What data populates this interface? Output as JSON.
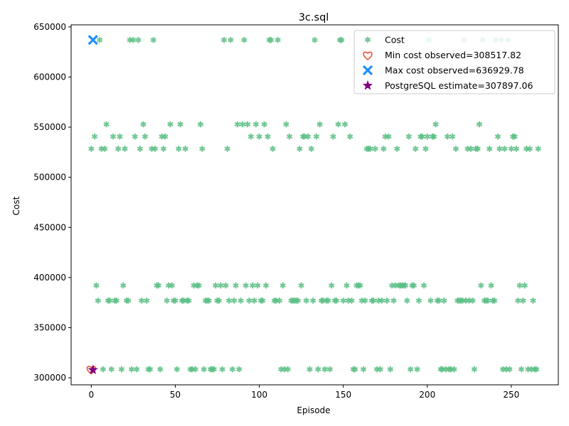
{
  "chart_data": {
    "type": "scatter",
    "title": "3c.sql",
    "xlabel": "Episode",
    "ylabel": "Cost",
    "xlim": [
      -12,
      278
    ],
    "ylim": [
      293000,
      652000
    ],
    "xticks": [
      0,
      50,
      100,
      150,
      200,
      250
    ],
    "yticks": [
      300000,
      350000,
      400000,
      450000,
      500000,
      550000,
      600000,
      650000
    ],
    "grid": false,
    "legend_position": "top-right",
    "colors": {
      "cost": "#5cbf85",
      "min": "#f0634b",
      "max": "#1e90ff",
      "estimate": "#800080"
    },
    "series": [
      {
        "name": "Cost",
        "marker": "asterisk",
        "points": [
          [
            0,
            528400
          ],
          [
            2,
            540600
          ],
          [
            3,
            392100
          ],
          [
            4,
            377000
          ],
          [
            5,
            636900
          ],
          [
            6,
            528400
          ],
          [
            7,
            308500
          ],
          [
            8,
            528400
          ],
          [
            9,
            552800
          ],
          [
            10,
            377000
          ],
          [
            11,
            377000
          ],
          [
            12,
            308500
          ],
          [
            13,
            540600
          ],
          [
            14,
            377000
          ],
          [
            15,
            377000
          ],
          [
            16,
            528400
          ],
          [
            17,
            540600
          ],
          [
            18,
            308500
          ],
          [
            19,
            392100
          ],
          [
            20,
            528400
          ],
          [
            21,
            377000
          ],
          [
            22,
            377000
          ],
          [
            23,
            636900
          ],
          [
            24,
            308500
          ],
          [
            25,
            636900
          ],
          [
            26,
            540600
          ],
          [
            27,
            308500
          ],
          [
            28,
            636900
          ],
          [
            29,
            528400
          ],
          [
            30,
            377000
          ],
          [
            31,
            552800
          ],
          [
            32,
            540600
          ],
          [
            33,
            377000
          ],
          [
            34,
            308500
          ],
          [
            35,
            308500
          ],
          [
            36,
            528400
          ],
          [
            37,
            636900
          ],
          [
            38,
            528400
          ],
          [
            39,
            392100
          ],
          [
            40,
            392100
          ],
          [
            41,
            308500
          ],
          [
            42,
            540600
          ],
          [
            43,
            528400
          ],
          [
            44,
            540600
          ],
          [
            45,
            377000
          ],
          [
            46,
            392100
          ],
          [
            47,
            552800
          ],
          [
            48,
            392100
          ],
          [
            49,
            377000
          ],
          [
            50,
            377000
          ],
          [
            51,
            308500
          ],
          [
            52,
            528400
          ],
          [
            53,
            552800
          ],
          [
            54,
            377000
          ],
          [
            55,
            377000
          ],
          [
            56,
            528400
          ],
          [
            57,
            377000
          ],
          [
            58,
            377000
          ],
          [
            59,
            308500
          ],
          [
            60,
            308500
          ],
          [
            61,
            392100
          ],
          [
            62,
            308500
          ],
          [
            63,
            392100
          ],
          [
            64,
            392100
          ],
          [
            65,
            552800
          ],
          [
            66,
            528400
          ],
          [
            67,
            308500
          ],
          [
            68,
            377000
          ],
          [
            69,
            377000
          ],
          [
            70,
            377000
          ],
          [
            71,
            308500
          ],
          [
            72,
            308500
          ],
          [
            73,
            308500
          ],
          [
            74,
            392100
          ],
          [
            75,
            377000
          ],
          [
            76,
            377000
          ],
          [
            77,
            392100
          ],
          [
            78,
            308500
          ],
          [
            79,
            636900
          ],
          [
            80,
            392100
          ],
          [
            81,
            528400
          ],
          [
            82,
            377000
          ],
          [
            83,
            636900
          ],
          [
            84,
            308500
          ],
          [
            85,
            377000
          ],
          [
            86,
            392100
          ],
          [
            87,
            552800
          ],
          [
            88,
            308500
          ],
          [
            89,
            377000
          ],
          [
            90,
            552800
          ],
          [
            91,
            636900
          ],
          [
            92,
            392100
          ],
          [
            93,
            552800
          ],
          [
            94,
            377000
          ],
          [
            95,
            540600
          ],
          [
            96,
            392100
          ],
          [
            97,
            377000
          ],
          [
            98,
            552800
          ],
          [
            99,
            392100
          ],
          [
            100,
            540600
          ],
          [
            101,
            377000
          ],
          [
            102,
            377000
          ],
          [
            103,
            552800
          ],
          [
            104,
            392100
          ],
          [
            105,
            540600
          ],
          [
            106,
            636900
          ],
          [
            107,
            636900
          ],
          [
            108,
            528400
          ],
          [
            109,
            377000
          ],
          [
            110,
            377000
          ],
          [
            111,
            636900
          ],
          [
            112,
            377000
          ],
          [
            113,
            308500
          ],
          [
            114,
            392100
          ],
          [
            115,
            308500
          ],
          [
            116,
            552800
          ],
          [
            117,
            308500
          ],
          [
            118,
            540600
          ],
          [
            119,
            377000
          ],
          [
            120,
            377000
          ],
          [
            121,
            377000
          ],
          [
            122,
            377000
          ],
          [
            123,
            377000
          ],
          [
            124,
            528400
          ],
          [
            125,
            392100
          ],
          [
            126,
            540600
          ],
          [
            127,
            540600
          ],
          [
            128,
            377000
          ],
          [
            129,
            540600
          ],
          [
            130,
            308500
          ],
          [
            131,
            528400
          ],
          [
            132,
            377000
          ],
          [
            133,
            636900
          ],
          [
            134,
            540600
          ],
          [
            135,
            308500
          ],
          [
            136,
            552800
          ],
          [
            137,
            377000
          ],
          [
            138,
            377000
          ],
          [
            139,
            308500
          ],
          [
            140,
            377000
          ],
          [
            141,
            377000
          ],
          [
            142,
            308500
          ],
          [
            143,
            392100
          ],
          [
            144,
            540600
          ],
          [
            145,
            377000
          ],
          [
            146,
            377000
          ],
          [
            147,
            552800
          ],
          [
            148,
            636900
          ],
          [
            149,
            636900
          ],
          [
            150,
            377000
          ],
          [
            151,
            552800
          ],
          [
            152,
            392100
          ],
          [
            153,
            377000
          ],
          [
            154,
            540600
          ],
          [
            155,
            377000
          ],
          [
            156,
            308500
          ],
          [
            157,
            308500
          ],
          [
            158,
            392100
          ],
          [
            159,
            392100
          ],
          [
            160,
            392100
          ],
          [
            161,
            377000
          ],
          [
            162,
            308500
          ],
          [
            163,
            377000
          ],
          [
            164,
            528400
          ],
          [
            165,
            528400
          ],
          [
            166,
            528400
          ],
          [
            167,
            377000
          ],
          [
            168,
            377000
          ],
          [
            169,
            528400
          ],
          [
            170,
            308500
          ],
          [
            171,
            377000
          ],
          [
            172,
            308500
          ],
          [
            173,
            377000
          ],
          [
            174,
            528400
          ],
          [
            175,
            540600
          ],
          [
            176,
            377000
          ],
          [
            177,
            540600
          ],
          [
            178,
            308500
          ],
          [
            179,
            392100
          ],
          [
            180,
            377000
          ],
          [
            181,
            392100
          ],
          [
            182,
            528400
          ],
          [
            183,
            392100
          ],
          [
            184,
            392100
          ],
          [
            185,
            392100
          ],
          [
            186,
            392100
          ],
          [
            187,
            392100
          ],
          [
            188,
            377000
          ],
          [
            189,
            540600
          ],
          [
            190,
            308500
          ],
          [
            191,
            392100
          ],
          [
            192,
            392100
          ],
          [
            193,
            528400
          ],
          [
            194,
            308500
          ],
          [
            195,
            377000
          ],
          [
            196,
            540600
          ],
          [
            197,
            540600
          ],
          [
            198,
            392100
          ],
          [
            199,
            528400
          ],
          [
            200,
            540600
          ],
          [
            201,
            636900
          ],
          [
            202,
            377000
          ],
          [
            203,
            540600
          ],
          [
            204,
            540600
          ],
          [
            205,
            552800
          ],
          [
            206,
            377000
          ],
          [
            207,
            377000
          ],
          [
            208,
            308500
          ],
          [
            209,
            308500
          ],
          [
            210,
            377000
          ],
          [
            211,
            308500
          ],
          [
            212,
            540600
          ],
          [
            213,
            308500
          ],
          [
            214,
            308500
          ],
          [
            215,
            540600
          ],
          [
            216,
            308500
          ],
          [
            217,
            528400
          ],
          [
            218,
            377000
          ],
          [
            219,
            377000
          ],
          [
            220,
            377000
          ],
          [
            221,
            377000
          ],
          [
            222,
            636900
          ],
          [
            223,
            377000
          ],
          [
            224,
            528400
          ],
          [
            225,
            377000
          ],
          [
            226,
            528400
          ],
          [
            227,
            377000
          ],
          [
            228,
            308500
          ],
          [
            229,
            528400
          ],
          [
            230,
            528400
          ],
          [
            231,
            552800
          ],
          [
            232,
            392100
          ],
          [
            233,
            636900
          ],
          [
            234,
            377000
          ],
          [
            235,
            377000
          ],
          [
            236,
            377000
          ],
          [
            237,
            528400
          ],
          [
            238,
            392100
          ],
          [
            239,
            377000
          ],
          [
            240,
            377000
          ],
          [
            241,
            636900
          ],
          [
            242,
            540600
          ],
          [
            243,
            528400
          ],
          [
            244,
            636900
          ],
          [
            245,
            308500
          ],
          [
            246,
            528400
          ],
          [
            247,
            308500
          ],
          [
            248,
            636900
          ],
          [
            249,
            308500
          ],
          [
            250,
            528400
          ],
          [
            251,
            540600
          ],
          [
            252,
            540600
          ],
          [
            253,
            528400
          ],
          [
            254,
            377000
          ],
          [
            255,
            392100
          ],
          [
            256,
            308500
          ],
          [
            257,
            377000
          ],
          [
            258,
            392100
          ],
          [
            259,
            528400
          ],
          [
            260,
            308500
          ],
          [
            261,
            528400
          ],
          [
            262,
            308500
          ],
          [
            263,
            377000
          ],
          [
            264,
            308500
          ],
          [
            265,
            308500
          ],
          [
            266,
            528400
          ]
        ]
      },
      {
        "name": "Min cost observed=308517.82",
        "marker": "heart",
        "points": [
          [
            0,
            308517.82
          ]
        ]
      },
      {
        "name": "Max cost observed=636929.78",
        "marker": "x",
        "points": [
          [
            1,
            636929.78
          ]
        ]
      },
      {
        "name": "PostgreSQL estimate=307897.06",
        "marker": "star",
        "points": [
          [
            1,
            307897.06
          ]
        ]
      }
    ]
  }
}
